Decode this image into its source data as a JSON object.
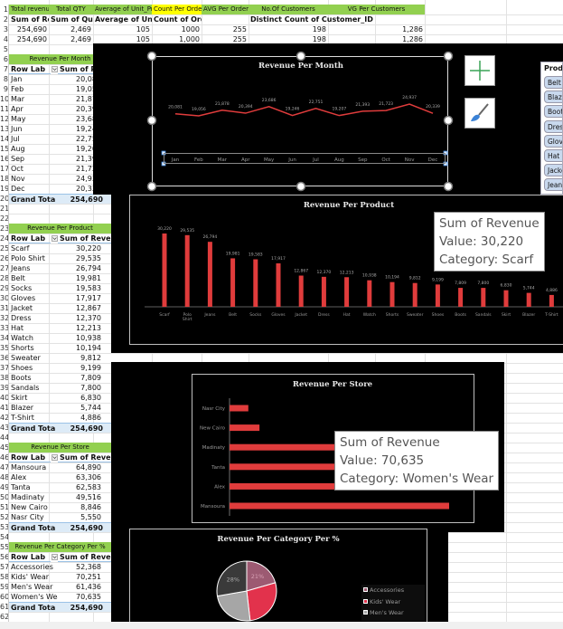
{
  "header_row1": [
    "Total revenue",
    "Total QTY",
    "Average of Unit_Pric",
    "Count Per Order",
    "AVG Per Order",
    "No.Of Customers",
    "VG Per Customers"
  ],
  "header_row2": [
    "Sum of Rev",
    "Sum of Quan",
    "Average of Unit_",
    "Count of Order_ID",
    "",
    "Distinct Count of Customer_ID",
    ""
  ],
  "header_row3": [
    "254,690",
    "2,469",
    "105",
    "1000",
    "255",
    "198",
    "1,286"
  ],
  "header_row4": [
    "254,690",
    "2,469",
    "105",
    "1,000",
    "255",
    "198",
    "1,286"
  ],
  "pivot_common": {
    "row_label": "Row Lab",
    "sum_label": "Sum of Reve",
    "grand_total": "Grand Tota"
  },
  "pivots": [
    {
      "title": "Revenue Per Month",
      "start_row": 6,
      "total": "254,690",
      "rows": [
        [
          "Jan",
          "20,081"
        ],
        [
          "Feb",
          "19,056"
        ],
        [
          "Mar",
          "21,878"
        ],
        [
          "Apr",
          "20,394"
        ],
        [
          "May",
          "23,686"
        ],
        [
          "Jun",
          "19,246"
        ],
        [
          "Jul",
          "22,751"
        ],
        [
          "Aug",
          "19,207"
        ],
        [
          "Sep",
          "21,393"
        ],
        [
          "Oct",
          "21,723"
        ],
        [
          "Nov",
          "24,937"
        ],
        [
          "Dec",
          "20,339"
        ]
      ]
    },
    {
      "title": "Revenue Per Product",
      "start_row": 23,
      "total": "254,690",
      "rows": [
        [
          "Scarf",
          "30,220"
        ],
        [
          "Polo Shirt",
          "29,535"
        ],
        [
          "Jeans",
          "26,794"
        ],
        [
          "Belt",
          "19,981"
        ],
        [
          "Socks",
          "19,583"
        ],
        [
          "Gloves",
          "17,917"
        ],
        [
          "Jacket",
          "12,867"
        ],
        [
          "Dress",
          "12,370"
        ],
        [
          "Hat",
          "12,213"
        ],
        [
          "Watch",
          "10,938"
        ],
        [
          "Shorts",
          "10,194"
        ],
        [
          "Sweater",
          "9,812"
        ],
        [
          "Shoes",
          "9,199"
        ],
        [
          "Boots",
          "7,809"
        ],
        [
          "Sandals",
          "7,800"
        ],
        [
          "Skirt",
          "6,830"
        ],
        [
          "Blazer",
          "5,744"
        ],
        [
          "T-Shirt",
          "4,886"
        ]
      ]
    },
    {
      "title": "Revenue Per Store",
      "start_row": 45,
      "total": "254,690",
      "rows": [
        [
          "Mansoura",
          "64,890"
        ],
        [
          "Alex",
          "63,306"
        ],
        [
          "Tanta",
          "62,583"
        ],
        [
          "Madinaty",
          "49,516"
        ],
        [
          "New Cairo",
          "8,846"
        ],
        [
          "Nasr City",
          "5,550"
        ]
      ]
    },
    {
      "title": "Revenue Per Category Per %",
      "start_row": 55,
      "total": "254,690",
      "rows": [
        [
          "Accessories",
          "52,368"
        ],
        [
          "Kids' Wear",
          "70,251"
        ],
        [
          "Men's Wear",
          "61,436"
        ],
        [
          "Women's Wea",
          "70,635"
        ]
      ]
    }
  ],
  "chart_data": [
    {
      "type": "line",
      "title": "Revenue Per Month",
      "categories": [
        "Jan",
        "Feb",
        "Mar",
        "Apr",
        "May",
        "Jun",
        "Jul",
        "Aug",
        "Sep",
        "Oct",
        "Nov",
        "Dec"
      ],
      "values": [
        20081,
        19056,
        21878,
        20394,
        23686,
        19246,
        22751,
        19207,
        21393,
        21723,
        24937,
        20339
      ],
      "labels": [
        "20,081",
        "19,056",
        "21,878",
        "20,394",
        "23,686",
        "19,246",
        "22,751",
        "19,207",
        "21,393",
        "21,723",
        "24,937",
        "20,339"
      ],
      "color": "#e03c3c"
    },
    {
      "type": "bar",
      "title": "Revenue Per Product",
      "categories": [
        "Scarf",
        "Polo Shirt",
        "Jeans",
        "Belt",
        "Socks",
        "Gloves",
        "Jacket",
        "Dress",
        "Hat",
        "Watch",
        "Shorts",
        "Sweater",
        "Shoes",
        "Boots",
        "Sandals",
        "Skirt",
        "Blazer",
        "T-Shirt"
      ],
      "values": [
        30220,
        29535,
        26794,
        19981,
        19583,
        17917,
        12867,
        12370,
        12213,
        10938,
        10194,
        9812,
        9199,
        7809,
        7800,
        6830,
        5744,
        4886
      ],
      "labels": [
        "30,220",
        "29,535",
        "26,794",
        "19,981",
        "19,583",
        "17,917",
        "12,867",
        "12,370",
        "12,213",
        "10,938",
        "10,194",
        "9,812",
        "9,199",
        "7,809",
        "7,800",
        "6,830",
        "5,744",
        "4,886"
      ],
      "color": "#e03c3c",
      "tooltip": {
        "line1": "Sum of Revenue",
        "line2": "Value: 30,220",
        "line3": "Category: Scarf"
      }
    },
    {
      "type": "bar",
      "orientation": "horizontal",
      "title": "Revenue Per Store",
      "categories": [
        "Nasr City",
        "New Cairo",
        "Madinaty",
        "Tanta",
        "Alex",
        "Mansoura"
      ],
      "values": [
        5550,
        8846,
        49516,
        62583,
        63306,
        64890
      ],
      "color": "#e03c3c",
      "tooltip": {
        "line1": "Sum of Revenue",
        "line2": "Value: 70,635",
        "line3": "Category: Women's Wear"
      }
    },
    {
      "type": "pie",
      "title": "Revenue Per Category Per %",
      "categories": [
        "Accessories",
        "Kids' Wear",
        "Men's Wear",
        "Women's Wear"
      ],
      "values": [
        52368,
        70251,
        61436,
        70635
      ],
      "colors": [
        "#9c5a72",
        "#e2324c",
        "#a6a6a6",
        "#3a3a3a"
      ],
      "slice_labels": [
        "21%",
        "",
        "",
        "28%"
      ],
      "legend": [
        "Accessories",
        "Kids' Wear",
        "Men's Wear"
      ],
      "legend_position": "right"
    }
  ],
  "slicer": {
    "title": "Product",
    "items": [
      "Belt",
      "Blazer",
      "Boots",
      "Dress",
      "Gloves",
      "Hat",
      "Jacket",
      "Jeans"
    ]
  },
  "chart_tools": {
    "add": "plus-icon",
    "style": "brush-icon"
  }
}
